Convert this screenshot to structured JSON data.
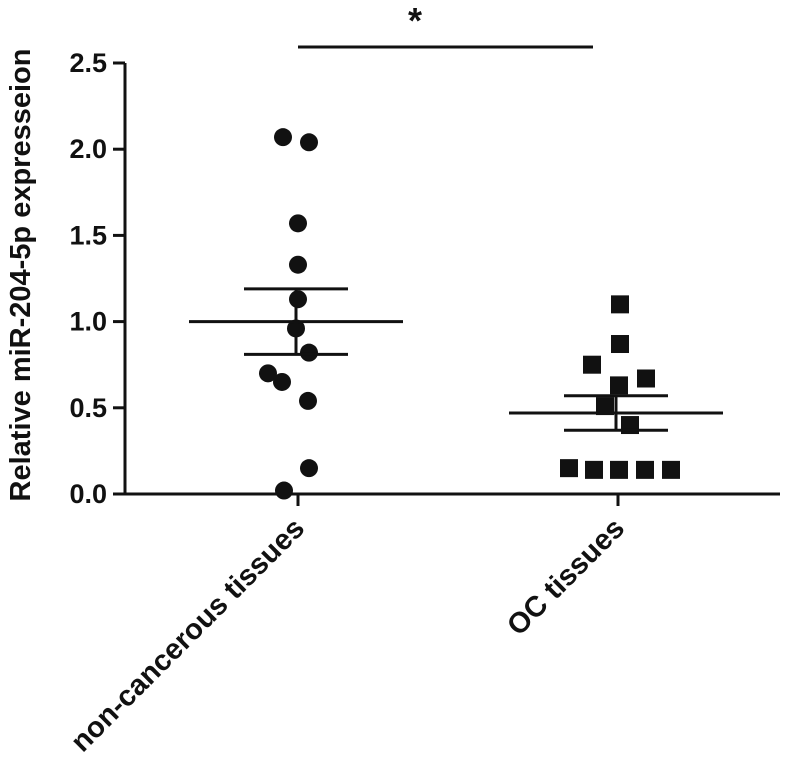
{
  "chart_data": {
    "type": "scatter",
    "title": "",
    "xlabel": "",
    "ylabel": "Relative miR-204-5p expresseion",
    "ylim": [
      0,
      2.5
    ],
    "yticks": [
      "0.0",
      "0.5",
      "1.0",
      "1.5",
      "2.0",
      "2.5"
    ],
    "categories": [
      "non-cancerous tissues",
      "OC tissues"
    ],
    "grid": false,
    "legend": "none",
    "significance": {
      "label": "*",
      "between": [
        "non-cancerous tissues",
        "OC tissues"
      ]
    },
    "series": [
      {
        "category": "non-cancerous tissues",
        "marker": "circle",
        "values": [
          2.07,
          2.04,
          1.57,
          1.33,
          1.13,
          0.96,
          0.82,
          0.7,
          0.65,
          0.54,
          0.15,
          0.02
        ],
        "mean": 1.0,
        "sem": [
          0.81,
          1.19
        ]
      },
      {
        "category": "OC tissues",
        "marker": "square",
        "values": [
          1.1,
          0.87,
          0.75,
          0.67,
          0.63,
          0.51,
          0.4,
          0.15,
          0.14,
          0.14,
          0.14,
          0.14
        ],
        "mean": 0.47,
        "sem": [
          0.37,
          0.57
        ]
      }
    ],
    "colors": {
      "marker": "#111111",
      "axis": "#111111"
    }
  }
}
